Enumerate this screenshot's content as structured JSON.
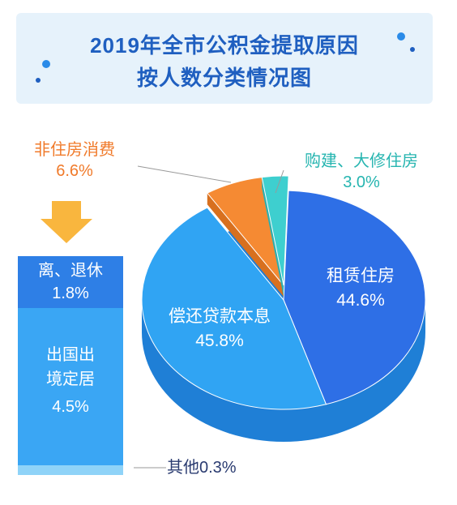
{
  "title": {
    "line1": "2019年全市公积金提取原因",
    "line2": "按人数分类情况图"
  },
  "colors": {
    "rent": "#2e6fe6",
    "repay": "#30a4f3",
    "consume": "#f58a33",
    "build": "#3ecfcf",
    "side_dark": "#2e7fe6",
    "side_light": "#3aa6f4",
    "label_orange": "#f07a2a",
    "label_teal": "#26b5b0"
  },
  "chart_data": {
    "type": "pie",
    "slices": [
      {
        "name": "租赁住房",
        "value": 44.6,
        "label": "44.6%"
      },
      {
        "name": "偿还贷款本息",
        "value": 45.8,
        "label": "45.8%"
      },
      {
        "name": "非住房消费",
        "value": 6.6,
        "label": "6.6%"
      },
      {
        "name": "购建、大修住房",
        "value": 3.0,
        "label": "3.0%"
      }
    ],
    "breakdown": {
      "parent": "非住房消费",
      "items": [
        {
          "name": "离、退休",
          "value": 1.8,
          "label": "1.8%"
        },
        {
          "name": "出国出境定居",
          "name_line1": "出国出",
          "name_line2": "境定居",
          "value": 4.5,
          "label": "4.5%"
        },
        {
          "name": "其他",
          "value": 0.3,
          "label": "其他0.3%"
        }
      ]
    }
  }
}
